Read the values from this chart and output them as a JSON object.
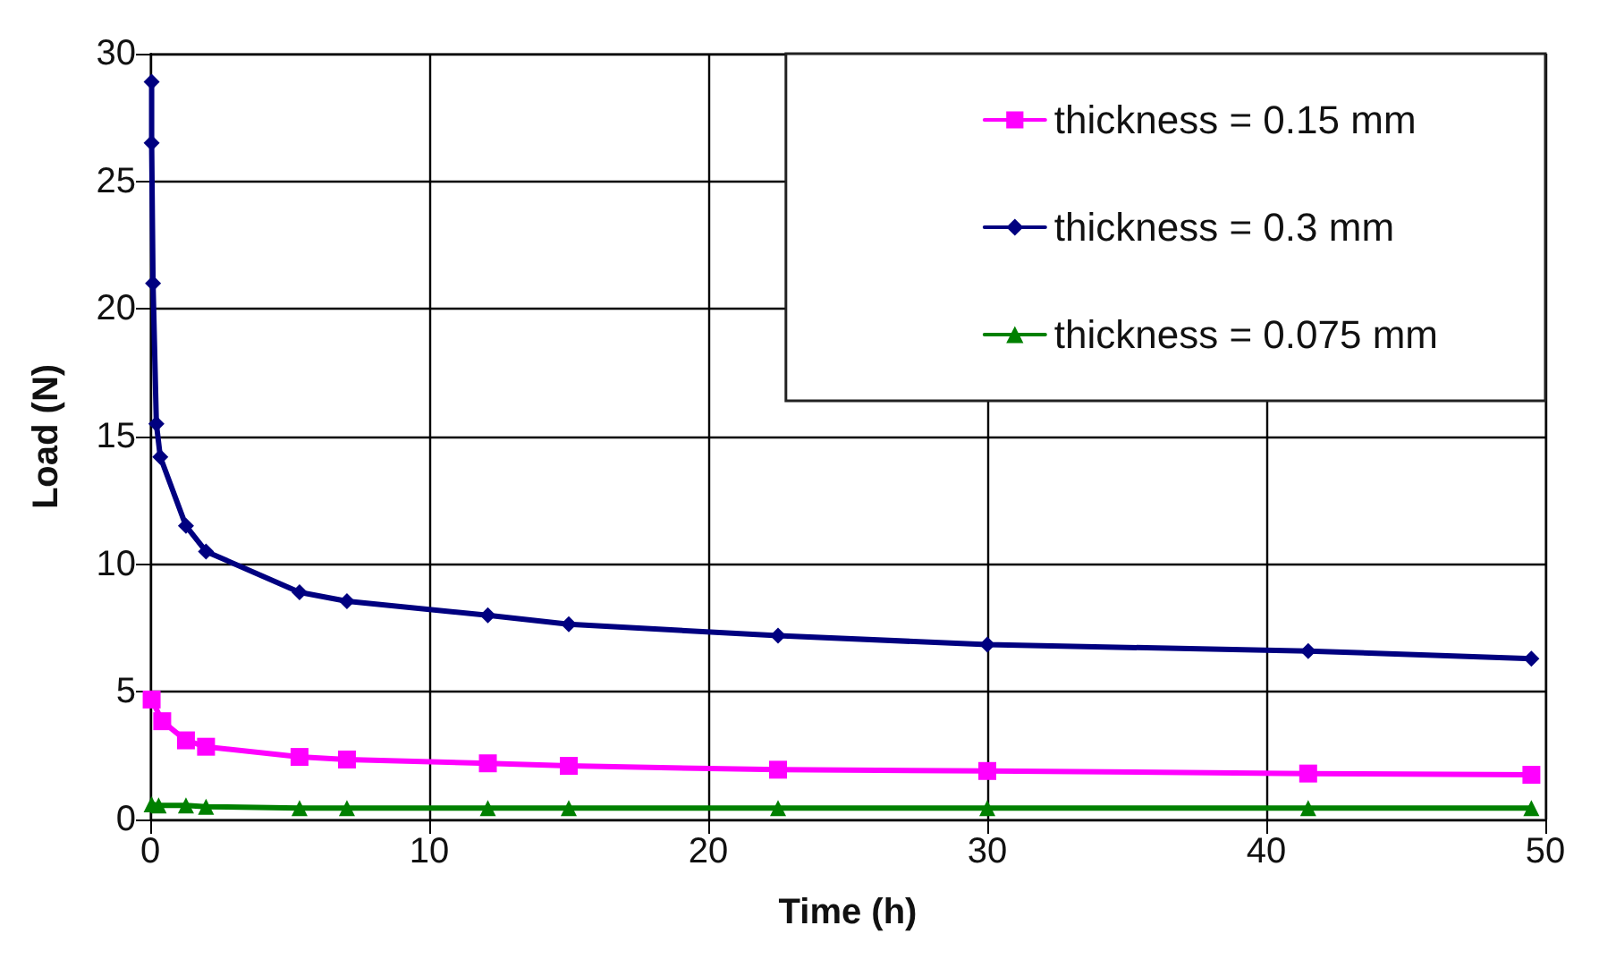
{
  "chart_data": {
    "type": "line",
    "xlabel": "Time (h)",
    "ylabel": "Load (N)",
    "xlim": [
      0,
      50
    ],
    "xticks": [
      0,
      10,
      20,
      30,
      40,
      50
    ],
    "ylim": [
      0,
      30
    ],
    "yticks": [
      0,
      5,
      10,
      15,
      20,
      25,
      30
    ],
    "grid": true,
    "legend": "top right",
    "series": [
      {
        "name": "thickness = 0.15 mm",
        "color": "#ff00ff",
        "marker": "square",
        "x": [
          0.05,
          0.43,
          1.28,
          2,
          5.35,
          7.05,
          12.1,
          15,
          22.5,
          30,
          41.5,
          49.5
        ],
        "values": [
          4.7,
          3.85,
          3.1,
          2.85,
          2.45,
          2.35,
          2.2,
          2.1,
          1.95,
          1.9,
          1.8,
          1.75
        ]
      },
      {
        "name": "thickness = 0.3 mm",
        "color": "#000080",
        "marker": "diamond",
        "x": [
          0.05,
          0.05,
          0.1,
          0.22,
          0.36,
          1.28,
          2,
          5.35,
          7.05,
          12.1,
          15,
          22.5,
          30,
          41.5,
          49.5
        ],
        "values": [
          28.9,
          26.5,
          21,
          15.5,
          14.2,
          11.5,
          10.5,
          8.9,
          8.55,
          8,
          7.65,
          7.2,
          6.85,
          6.6,
          6.3
        ]
      },
      {
        "name": "thickness = 0.075 mm",
        "color": "#008000",
        "marker": "triangle",
        "x": [
          0.05,
          0.3,
          1.28,
          2,
          5.35,
          7.05,
          12.1,
          15,
          22.5,
          30,
          41.5,
          49.5
        ],
        "values": [
          0.6,
          0.55,
          0.55,
          0.5,
          0.45,
          0.45,
          0.45,
          0.45,
          0.45,
          0.45,
          0.45,
          0.45
        ]
      }
    ]
  }
}
